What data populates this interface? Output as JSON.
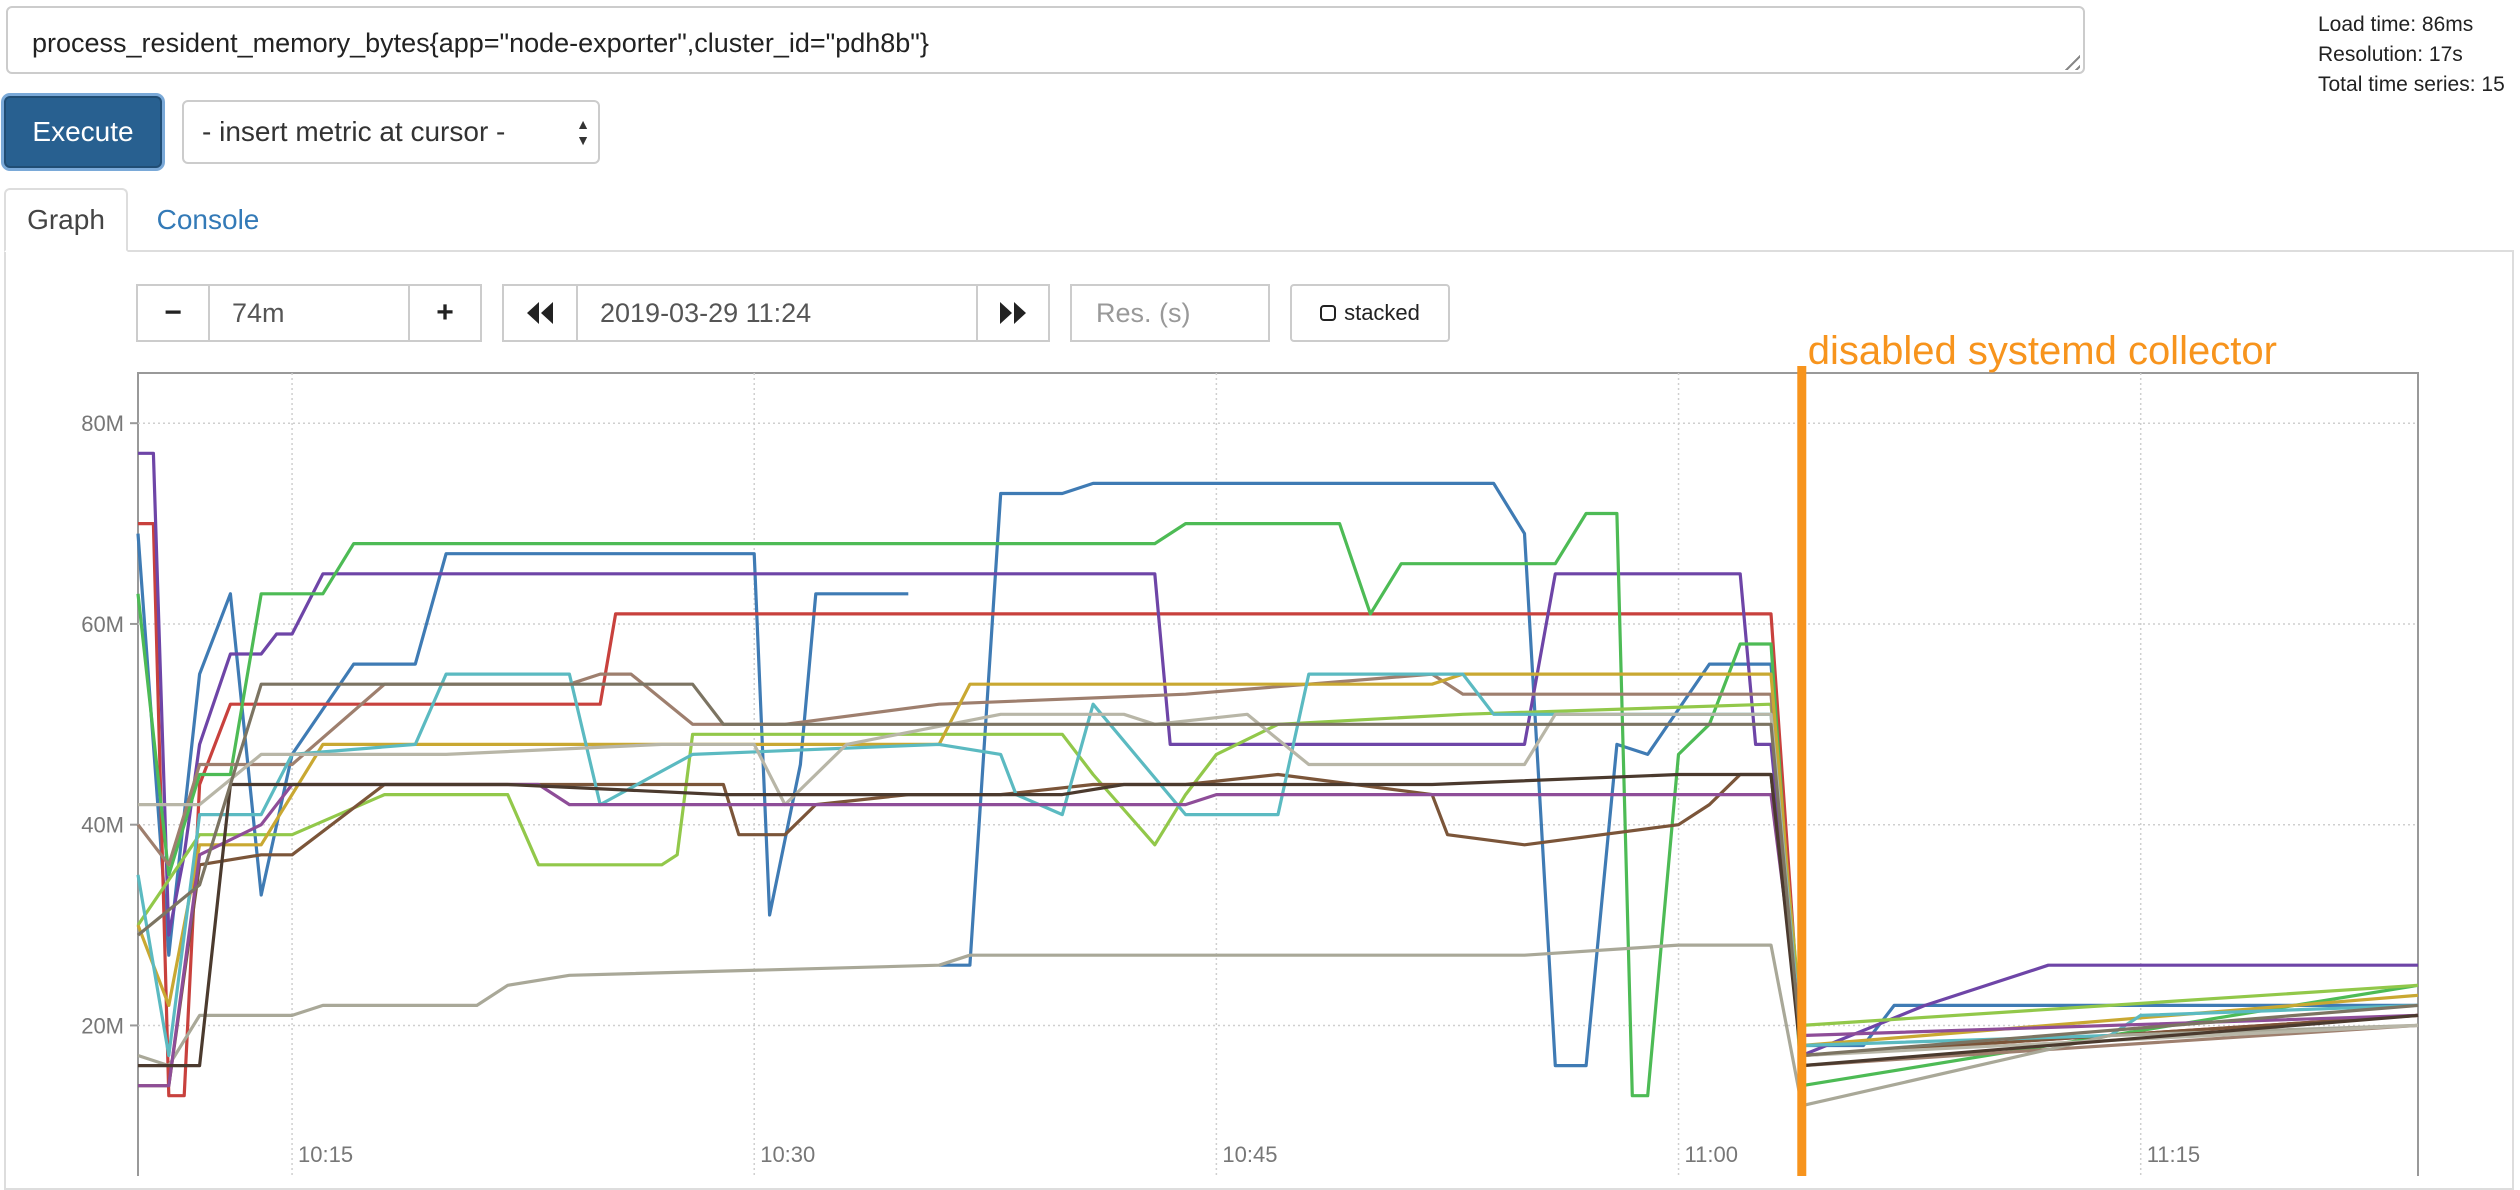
{
  "query": {
    "expression": "process_resident_memory_bytes{app=\"node-exporter\",cluster_id=\"pdh8b\"}"
  },
  "stats": {
    "load_time": "Load time: 86ms",
    "resolution": "Resolution: 17s",
    "total_series": "Total time series: 15"
  },
  "execute_label": "Execute",
  "metric_select": {
    "selected": "- insert metric at cursor -"
  },
  "tabs": [
    {
      "label": "Graph",
      "active": true
    },
    {
      "label": "Console",
      "active": false
    }
  ],
  "controls": {
    "range_minus": "−",
    "range_value": "74m",
    "range_plus": "+",
    "back_icon": "double-left-icon",
    "end_time": "2019-03-29 11:24",
    "forward_icon": "double-right-icon",
    "resolution_placeholder": "Res. (s)",
    "stacked_label": "stacked"
  },
  "chart_data": {
    "type": "line",
    "x_ticks": [
      "10:15",
      "10:30",
      "10:45",
      "11:00",
      "11:15"
    ],
    "y_ticks": [
      "20M",
      "40M",
      "60M",
      "80M"
    ],
    "xlim": [
      "10:10",
      "11:24"
    ],
    "ylim_mb": [
      5,
      85
    ],
    "grid": true,
    "annotation": {
      "text": "disabled systemd collector",
      "x": "11:04",
      "color": "#f7941d"
    },
    "series": [
      {
        "color": "#3f7bb4",
        "points": [
          [
            "10:10",
            69
          ],
          [
            "10:11",
            27
          ],
          [
            "10:12",
            55
          ],
          [
            "10:13",
            63
          ],
          [
            "10:14",
            33
          ],
          [
            "10:15",
            47
          ],
          [
            "10:17",
            56
          ],
          [
            "10:19",
            56
          ],
          [
            "10:20",
            67
          ],
          [
            "10:30",
            67
          ],
          [
            "10:30.5",
            31
          ],
          [
            "10:31.5",
            46
          ],
          [
            "10:32",
            63
          ],
          [
            "10:35",
            63
          ]
        ]
      },
      {
        "color": "#3f7bb4",
        "points": [
          [
            "10:36",
            26
          ],
          [
            "10:37",
            26
          ],
          [
            "10:38",
            73
          ],
          [
            "10:40",
            73
          ],
          [
            "10:41",
            74
          ],
          [
            "10:54",
            74
          ],
          [
            "10:55",
            69
          ],
          [
            "10:56",
            16
          ],
          [
            "10:57",
            16
          ],
          [
            "10:58",
            48
          ],
          [
            "10:59",
            47
          ],
          [
            "11:01",
            56
          ],
          [
            "11:03",
            56
          ],
          [
            "11:04",
            18
          ],
          [
            "11:06",
            18
          ],
          [
            "11:07",
            22
          ],
          [
            "11:24",
            22
          ]
        ]
      },
      {
        "color": "#c8413d",
        "points": [
          [
            "10:10",
            70
          ],
          [
            "10:10.5",
            70
          ],
          [
            "10:11",
            13
          ],
          [
            "10:11.5",
            13
          ],
          [
            "10:12",
            44
          ],
          [
            "10:13",
            52
          ],
          [
            "10:15",
            52
          ],
          [
            "10:25",
            52
          ],
          [
            "10:25.5",
            61
          ],
          [
            "11:03",
            61
          ],
          [
            "11:04",
            17
          ],
          [
            "11:24",
            21
          ]
        ]
      },
      {
        "color": "#6e45a7",
        "points": [
          [
            "10:10",
            77
          ],
          [
            "10:10.5",
            77
          ],
          [
            "10:11",
            29
          ],
          [
            "10:11.5",
            37
          ],
          [
            "10:12",
            48
          ],
          [
            "10:13",
            57
          ],
          [
            "10:14",
            57
          ],
          [
            "10:14.5",
            59
          ],
          [
            "10:15",
            59
          ],
          [
            "10:16",
            65
          ],
          [
            "10:43",
            65
          ],
          [
            "10:43.5",
            48
          ],
          [
            "10:55",
            48
          ],
          [
            "10:56",
            65
          ],
          [
            "11:02",
            65
          ],
          [
            "11:02.5",
            48
          ],
          [
            "11:03",
            48
          ],
          [
            "11:04",
            17
          ],
          [
            "11:08",
            22
          ],
          [
            "11:12",
            26
          ],
          [
            "11:24",
            26
          ]
        ]
      },
      {
        "color": "#4dbb55",
        "points": [
          [
            "10:10",
            63
          ],
          [
            "10:11",
            35
          ],
          [
            "10:12",
            45
          ],
          [
            "10:13",
            45
          ],
          [
            "10:14",
            63
          ],
          [
            "10:16",
            63
          ],
          [
            "10:17",
            68
          ],
          [
            "10:43",
            68
          ],
          [
            "10:44",
            70
          ],
          [
            "10:49",
            70
          ],
          [
            "10:50",
            61
          ],
          [
            "10:51",
            66
          ],
          [
            "10:56",
            66
          ],
          [
            "10:57",
            71
          ],
          [
            "10:58",
            71
          ],
          [
            "10:58.5",
            13
          ],
          [
            "10:59",
            13
          ],
          [
            "11:00",
            47
          ],
          [
            "11:01",
            50
          ],
          [
            "11:02",
            58
          ],
          [
            "11:03",
            58
          ],
          [
            "11:04",
            14
          ],
          [
            "11:24",
            24
          ]
        ]
      },
      {
        "color": "#92c84a",
        "points": [
          [
            "10:10",
            30
          ],
          [
            "10:12",
            39
          ],
          [
            "10:15",
            39
          ],
          [
            "10:18",
            43
          ],
          [
            "10:22",
            43
          ],
          [
            "10:23",
            36
          ],
          [
            "10:27",
            36
          ],
          [
            "10:27.5",
            37
          ],
          [
            "10:28",
            49
          ],
          [
            "10:40",
            49
          ],
          [
            "10:41",
            45
          ],
          [
            "10:43",
            38
          ],
          [
            "10:44",
            43
          ],
          [
            "10:45",
            47
          ],
          [
            "10:47",
            50
          ],
          [
            "10:53",
            51
          ],
          [
            "11:03",
            52
          ],
          [
            "11:04",
            20
          ],
          [
            "11:24",
            24
          ]
        ]
      },
      {
        "color": "#7b5539",
        "points": [
          [
            "10:10",
            14
          ],
          [
            "10:11",
            14
          ],
          [
            "10:12",
            36
          ],
          [
            "10:14",
            37
          ],
          [
            "10:15",
            37
          ],
          [
            "10:18",
            44
          ],
          [
            "10:22",
            44
          ],
          [
            "10:29",
            44
          ],
          [
            "10:29.5",
            39
          ],
          [
            "10:31",
            39
          ],
          [
            "10:32",
            42
          ],
          [
            "10:35",
            43
          ],
          [
            "10:38",
            43
          ],
          [
            "10:41",
            44
          ],
          [
            "10:44",
            44
          ],
          [
            "10:47",
            45
          ],
          [
            "10:52",
            43
          ],
          [
            "10:52.5",
            39
          ],
          [
            "10:55",
            38
          ],
          [
            "11:00",
            40
          ],
          [
            "11:01",
            42
          ],
          [
            "11:02",
            45
          ],
          [
            "11:03",
            45
          ],
          [
            "11:04",
            17
          ],
          [
            "11:24",
            21
          ]
        ]
      },
      {
        "color": "#9e7f6e",
        "points": [
          [
            "10:10",
            40
          ],
          [
            "10:11",
            36
          ],
          [
            "10:12",
            46
          ],
          [
            "10:15",
            46
          ],
          [
            "10:18",
            54
          ],
          [
            "10:24",
            54
          ],
          [
            "10:25",
            55
          ],
          [
            "10:26",
            55
          ],
          [
            "10:28",
            50
          ],
          [
            "10:31",
            50
          ],
          [
            "10:36",
            52
          ],
          [
            "10:44",
            53
          ],
          [
            "10:52",
            55
          ],
          [
            "10:53",
            53
          ],
          [
            "11:03",
            53
          ],
          [
            "11:04",
            16
          ],
          [
            "11:24",
            20
          ]
        ]
      },
      {
        "color": "#c9a832",
        "points": [
          [
            "10:10",
            30
          ],
          [
            "10:11",
            22
          ],
          [
            "10:12",
            38
          ],
          [
            "10:14",
            38
          ],
          [
            "10:16",
            48
          ],
          [
            "10:28",
            48
          ],
          [
            "10:30",
            48
          ],
          [
            "10:36",
            48
          ],
          [
            "10:37",
            54
          ],
          [
            "10:52",
            54
          ],
          [
            "10:53",
            55
          ],
          [
            "11:03",
            55
          ],
          [
            "11:04",
            18
          ],
          [
            "11:24",
            23
          ]
        ]
      },
      {
        "color": "#5bbac1",
        "points": [
          [
            "10:10",
            35
          ],
          [
            "10:11",
            17
          ],
          [
            "10:12",
            41
          ],
          [
            "10:14",
            41
          ],
          [
            "10:15",
            47
          ],
          [
            "10:19",
            48
          ],
          [
            "10:20",
            55
          ],
          [
            "10:24",
            55
          ],
          [
            "10:25",
            42
          ],
          [
            "10:28",
            47
          ],
          [
            "10:36",
            48
          ],
          [
            "10:38",
            47
          ],
          [
            "10:38.5",
            43
          ],
          [
            "10:40",
            41
          ],
          [
            "10:41",
            52
          ],
          [
            "10:44",
            41
          ],
          [
            "10:47",
            41
          ],
          [
            "10:48",
            55
          ],
          [
            "10:53",
            55
          ],
          [
            "10:54",
            51
          ],
          [
            "11:03",
            51
          ],
          [
            "11:04",
            18
          ],
          [
            "11:14",
            19
          ],
          [
            "11:15",
            21
          ],
          [
            "11:24",
            22
          ]
        ]
      },
      {
        "color": "#a9a898",
        "points": [
          [
            "10:10",
            17
          ],
          [
            "10:11",
            16
          ],
          [
            "10:12",
            21
          ],
          [
            "10:15",
            21
          ],
          [
            "10:16",
            22
          ],
          [
            "10:21",
            22
          ],
          [
            "10:22",
            24
          ],
          [
            "10:24",
            25
          ],
          [
            "10:36",
            26
          ],
          [
            "10:37",
            27
          ],
          [
            "10:55",
            27
          ],
          [
            "11:00",
            28
          ],
          [
            "11:03",
            28
          ],
          [
            "11:04",
            12
          ],
          [
            "11:14",
            19
          ],
          [
            "11:24",
            20
          ]
        ]
      },
      {
        "color": "#b8b6a7",
        "points": [
          [
            "10:10",
            42
          ],
          [
            "10:12",
            42
          ],
          [
            "10:14",
            47
          ],
          [
            "10:20",
            47
          ],
          [
            "10:27",
            48
          ],
          [
            "10:30",
            48
          ],
          [
            "10:31",
            42
          ],
          [
            "10:33",
            48
          ],
          [
            "10:38",
            51
          ],
          [
            "10:42",
            51
          ],
          [
            "10:43",
            50
          ],
          [
            "10:46",
            51
          ],
          [
            "10:48",
            46
          ],
          [
            "10:55",
            46
          ],
          [
            "10:56",
            51
          ],
          [
            "11:03",
            51
          ],
          [
            "11:04",
            17
          ],
          [
            "11:24",
            20
          ]
        ]
      },
      {
        "color": "#8e4d98",
        "points": [
          [
            "10:10",
            14
          ],
          [
            "10:11",
            14
          ],
          [
            "10:12",
            37
          ],
          [
            "10:14",
            40
          ],
          [
            "10:15",
            44
          ],
          [
            "10:23",
            44
          ],
          [
            "10:24",
            42
          ],
          [
            "10:35",
            42
          ],
          [
            "10:44",
            42
          ],
          [
            "10:45",
            43
          ],
          [
            "10:52",
            43
          ],
          [
            "11:02",
            43
          ],
          [
            "11:03",
            43
          ],
          [
            "11:04",
            19
          ],
          [
            "11:24",
            21
          ]
        ]
      },
      {
        "color": "#4b3a2e",
        "points": [
          [
            "10:10",
            16
          ],
          [
            "10:12",
            16
          ],
          [
            "10:13",
            44
          ],
          [
            "10:22",
            44
          ],
          [
            "10:29",
            43
          ],
          [
            "10:35",
            43
          ],
          [
            "10:40",
            43
          ],
          [
            "10:42",
            44
          ],
          [
            "10:50",
            44
          ],
          [
            "10:52",
            44
          ],
          [
            "11:00",
            45
          ],
          [
            "11:03",
            45
          ],
          [
            "11:04",
            16
          ],
          [
            "11:24",
            21
          ]
        ]
      },
      {
        "color": "#7c7462",
        "points": [
          [
            "10:10",
            29
          ],
          [
            "10:12",
            34
          ],
          [
            "10:14",
            54
          ],
          [
            "10:20",
            54
          ],
          [
            "10:28",
            54
          ],
          [
            "10:29",
            50
          ],
          [
            "10:32",
            50
          ],
          [
            "10:40",
            50
          ],
          [
            "10:42",
            50
          ],
          [
            "10:44",
            50
          ],
          [
            "10:55",
            50
          ],
          [
            "11:00",
            50
          ],
          [
            "11:03",
            50
          ],
          [
            "11:04",
            17
          ],
          [
            "11:24",
            22
          ]
        ]
      }
    ]
  }
}
